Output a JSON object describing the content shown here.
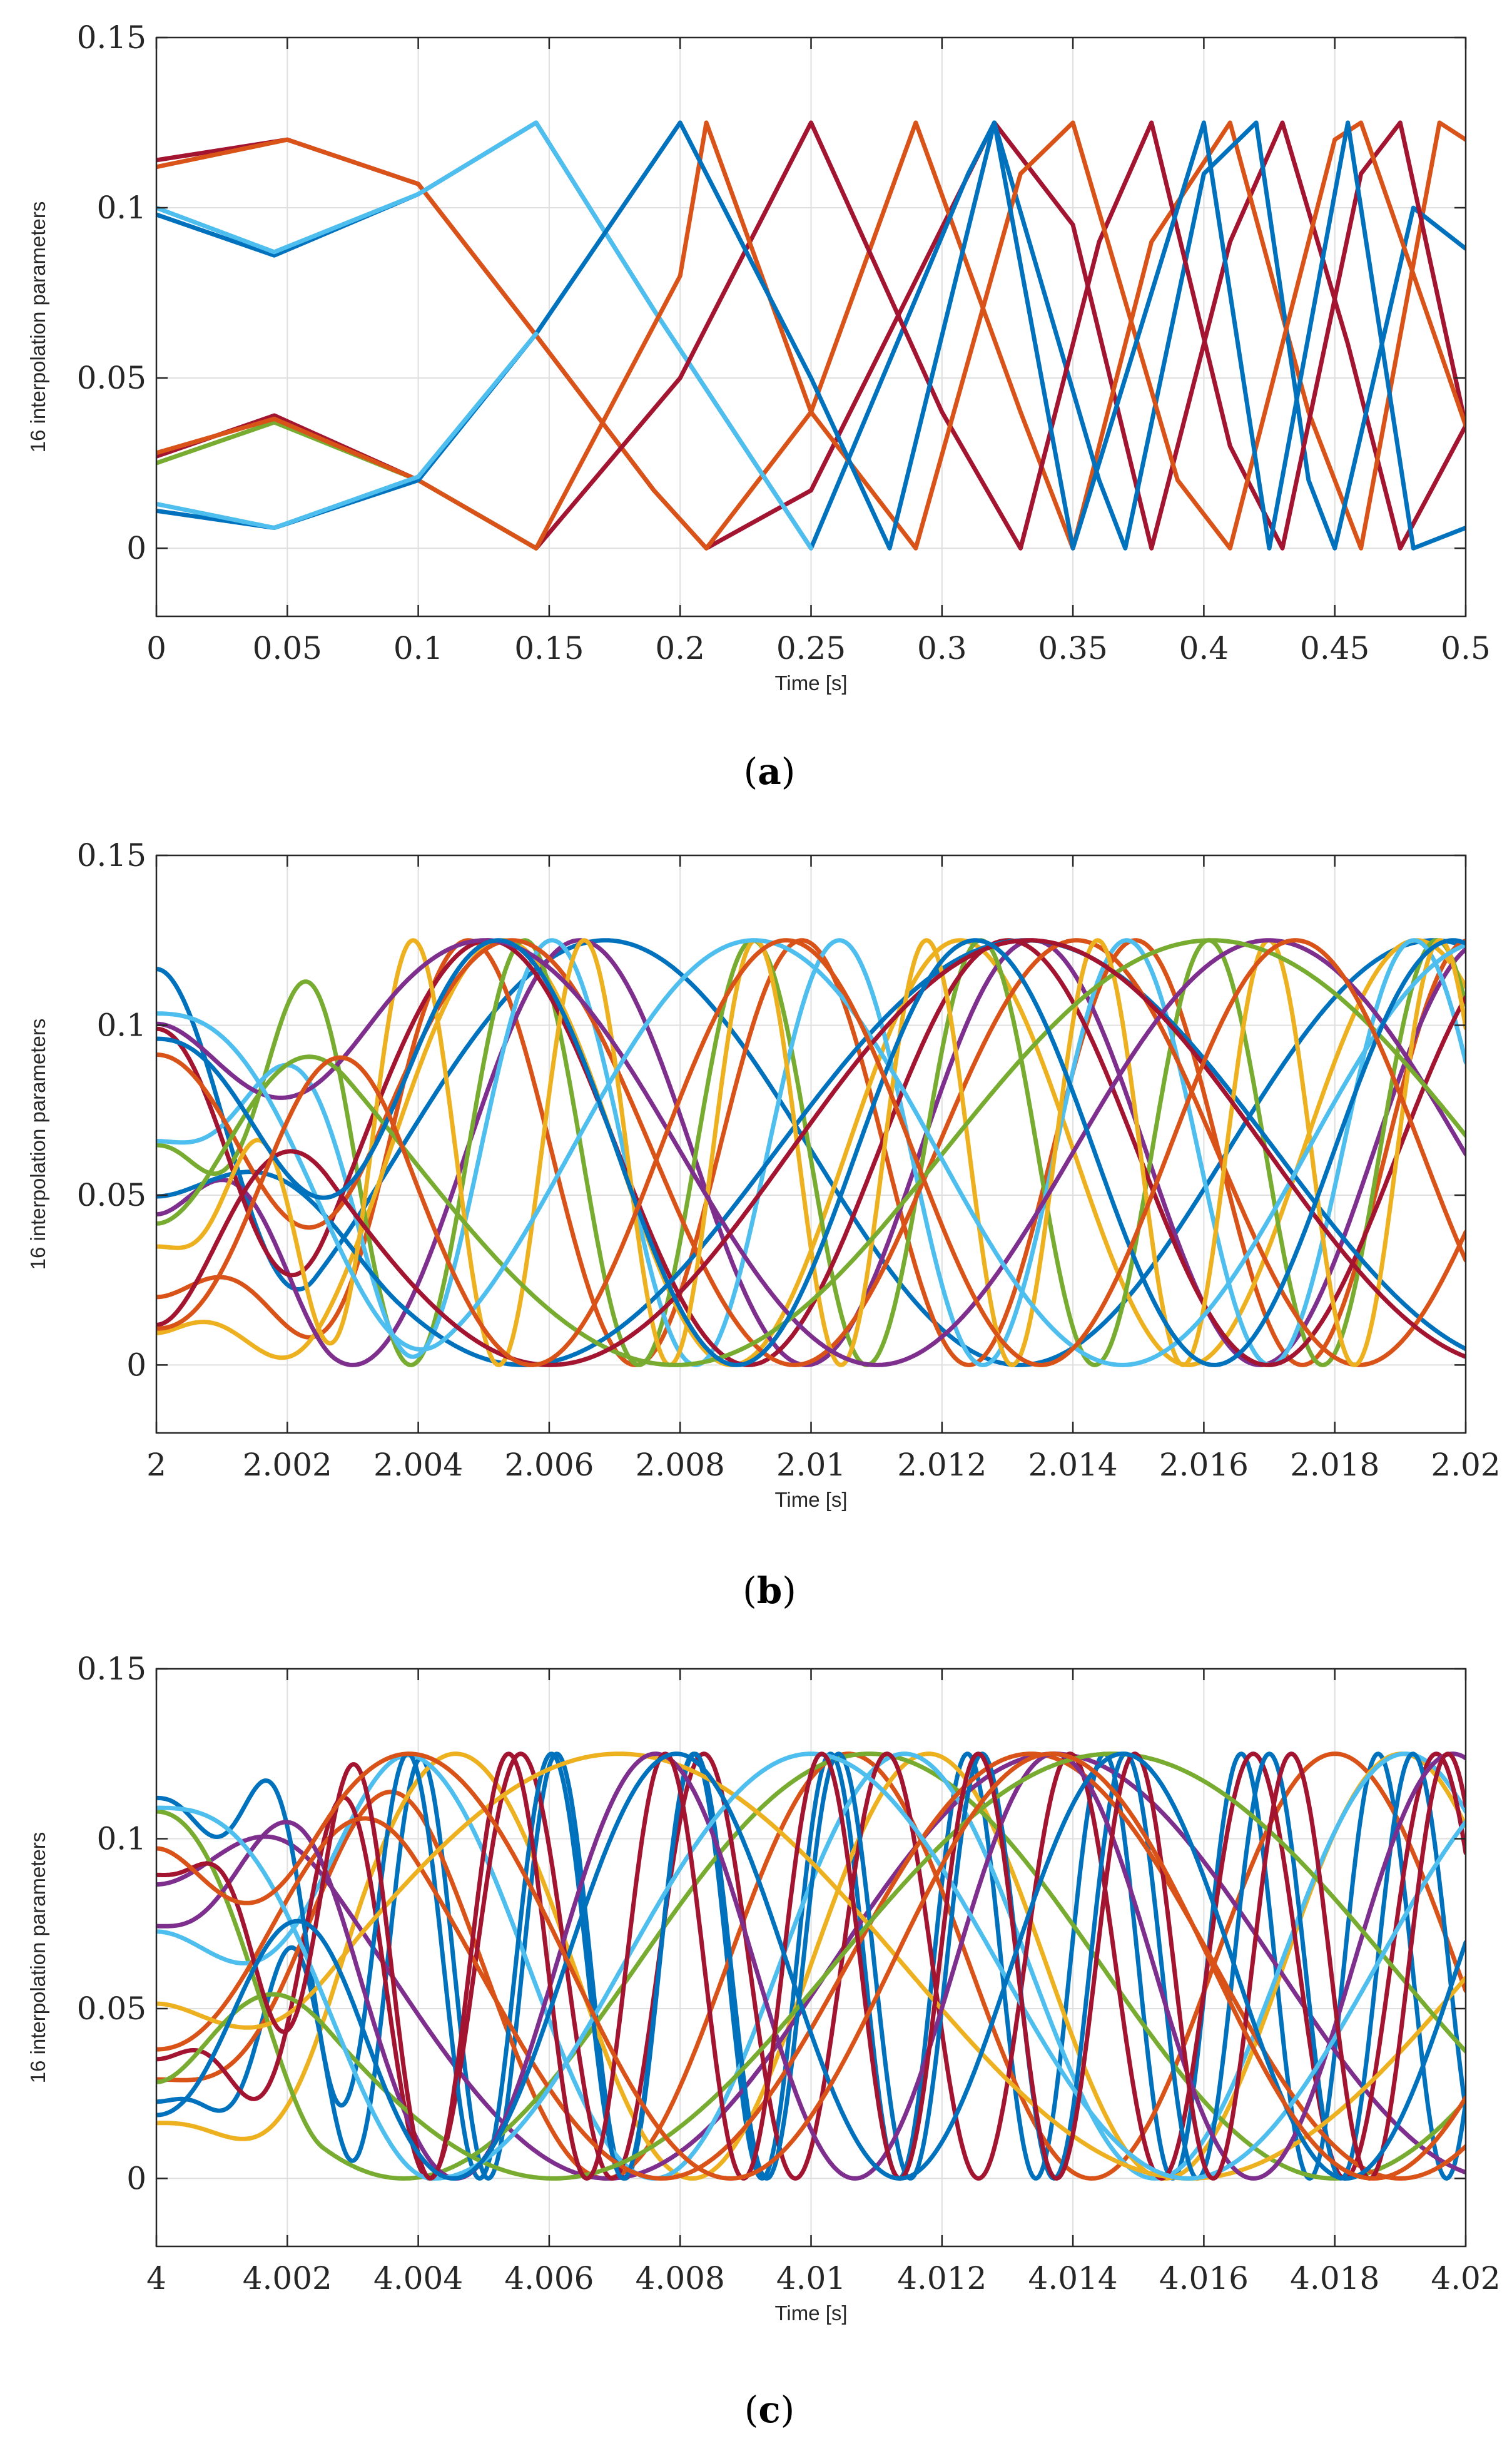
{
  "chart_data": [
    {
      "type": "line",
      "panel": "a",
      "caption": "a",
      "xlabel": "Time [s]",
      "ylabel": "16 interpolation parameters",
      "xlim": [
        0,
        0.5
      ],
      "ylim": [
        -0.02,
        0.15
      ],
      "xticks": [
        0,
        0.05,
        0.1,
        0.15,
        0.2,
        0.25,
        0.3,
        0.35,
        0.4,
        0.45,
        0.5
      ],
      "xtick_labels": [
        "0",
        "0.05",
        "0.1",
        "0.15",
        "0.2",
        "0.25",
        "0.3",
        "0.35",
        "0.4",
        "0.45",
        "0.5"
      ],
      "yticks": [
        0,
        0.05,
        0.1,
        0.15
      ],
      "ytick_labels": [
        "0",
        "0.05",
        "0.1",
        "0.15"
      ],
      "grid": true,
      "series_count": 16,
      "series_colors": [
        "#0072BD",
        "#D95319",
        "#EDB120",
        "#7E2F8E",
        "#77AC30",
        "#4DBEEE",
        "#A2142F"
      ],
      "series": [
        {
          "color": "#A2142F",
          "points": [
            [
              0,
              0.114
            ],
            [
              0.05,
              0.12
            ],
            [
              0.1,
              0.107
            ],
            [
              0.145,
              0.0625
            ],
            [
              0.19,
              0.017
            ],
            [
              0.21,
              0.0
            ],
            [
              0.25,
              0.017
            ],
            [
              0.32,
              0.125
            ],
            [
              0.35,
              0.095
            ],
            [
              0.38,
              0.0
            ],
            [
              0.41,
              0.09
            ],
            [
              0.43,
              0.125
            ],
            [
              0.455,
              0.06
            ],
            [
              0.475,
              0.0
            ],
            [
              0.5,
              0.036
            ]
          ]
        },
        {
          "color": "#D95319",
          "points": [
            [
              0,
              0.112
            ],
            [
              0.05,
              0.12
            ],
            [
              0.1,
              0.107
            ],
            [
              0.145,
              0.0625
            ],
            [
              0.19,
              0.017
            ],
            [
              0.21,
              0.0
            ],
            [
              0.25,
              0.04
            ],
            [
              0.29,
              0.125
            ],
            [
              0.33,
              0.04
            ],
            [
              0.35,
              0.0
            ],
            [
              0.38,
              0.09
            ],
            [
              0.41,
              0.125
            ],
            [
              0.44,
              0.04
            ],
            [
              0.46,
              0.0
            ],
            [
              0.49,
              0.125
            ],
            [
              0.5,
              0.12
            ]
          ]
        },
        {
          "color": "#0072BD",
          "points": [
            [
              0,
              0.098
            ],
            [
              0.045,
              0.086
            ],
            [
              0.1,
              0.104
            ],
            [
              0.145,
              0.125
            ],
            [
              0.19,
              0.07
            ],
            [
              0.25,
              0.0
            ],
            [
              0.31,
              0.11
            ],
            [
              0.32,
              0.125
            ],
            [
              0.36,
              0.02
            ],
            [
              0.37,
              0.0
            ],
            [
              0.4,
              0.11
            ],
            [
              0.42,
              0.125
            ],
            [
              0.44,
              0.02
            ],
            [
              0.45,
              0.0
            ],
            [
              0.48,
              0.1
            ],
            [
              0.5,
              0.088
            ]
          ]
        },
        {
          "color": "#4DBEEE",
          "points": [
            [
              0,
              0.1
            ],
            [
              0.045,
              0.087
            ],
            [
              0.1,
              0.104
            ],
            [
              0.145,
              0.125
            ],
            [
              0.19,
              0.07
            ],
            [
              0.25,
              0.0
            ]
          ]
        },
        {
          "color": "#A2142F",
          "points": [
            [
              0,
              0.027
            ],
            [
              0.045,
              0.039
            ],
            [
              0.1,
              0.02
            ],
            [
              0.145,
              0.0
            ],
            [
              0.2,
              0.05
            ],
            [
              0.25,
              0.125
            ],
            [
              0.3,
              0.04
            ],
            [
              0.33,
              0.0
            ],
            [
              0.36,
              0.09
            ],
            [
              0.38,
              0.125
            ],
            [
              0.41,
              0.03
            ],
            [
              0.43,
              0.0
            ],
            [
              0.46,
              0.11
            ],
            [
              0.475,
              0.125
            ],
            [
              0.5,
              0.036
            ]
          ]
        },
        {
          "color": "#77AC30",
          "points": [
            [
              0,
              0.025
            ],
            [
              0.045,
              0.037
            ],
            [
              0.1,
              0.02
            ],
            [
              0.145,
              0.0
            ]
          ]
        },
        {
          "color": "#D95319",
          "points": [
            [
              0,
              0.028
            ],
            [
              0.045,
              0.038
            ],
            [
              0.1,
              0.02
            ],
            [
              0.145,
              0.0
            ],
            [
              0.2,
              0.08
            ],
            [
              0.21,
              0.125
            ],
            [
              0.25,
              0.04
            ],
            [
              0.29,
              0.0
            ],
            [
              0.33,
              0.11
            ],
            [
              0.35,
              0.125
            ],
            [
              0.39,
              0.02
            ],
            [
              0.41,
              0.0
            ],
            [
              0.45,
              0.12
            ],
            [
              0.46,
              0.125
            ],
            [
              0.5,
              0.036
            ]
          ]
        },
        {
          "color": "#0072BD",
          "points": [
            [
              0,
              0.011
            ],
            [
              0.045,
              0.006
            ],
            [
              0.1,
              0.02
            ],
            [
              0.145,
              0.063
            ],
            [
              0.2,
              0.125
            ],
            [
              0.25,
              0.05
            ],
            [
              0.28,
              0.0
            ],
            [
              0.32,
              0.125
            ],
            [
              0.35,
              0.0
            ],
            [
              0.4,
              0.125
            ],
            [
              0.425,
              0.0
            ],
            [
              0.455,
              0.125
            ],
            [
              0.48,
              0.0
            ],
            [
              0.5,
              0.006
            ]
          ]
        },
        {
          "color": "#4DBEEE",
          "points": [
            [
              0,
              0.013
            ],
            [
              0.045,
              0.006
            ],
            [
              0.1,
              0.021
            ],
            [
              0.145,
              0.063
            ]
          ]
        }
      ]
    },
    {
      "type": "line",
      "panel": "b",
      "caption": "b",
      "xlabel": "Time [s]",
      "ylabel": "16 interpolation parameters",
      "xlim": [
        2,
        2.02
      ],
      "ylim": [
        -0.02,
        0.15
      ],
      "xticks": [
        2,
        2.002,
        2.004,
        2.006,
        2.008,
        2.01,
        2.012,
        2.014,
        2.016,
        2.018,
        2.02
      ],
      "xtick_labels": [
        "2",
        "2.002",
        "2.004",
        "2.006",
        "2.008",
        "2.01",
        "2.012",
        "2.014",
        "2.016",
        "2.018",
        "2.02"
      ],
      "yticks": [
        0,
        0.05,
        0.1,
        0.15
      ],
      "ytick_labels": [
        "0",
        "0.05",
        "0.1",
        "0.15"
      ],
      "grid": true,
      "series_count": 16,
      "series_colors": [
        "#0072BD",
        "#D95319",
        "#EDB120",
        "#7E2F8E",
        "#77AC30",
        "#4DBEEE",
        "#A2142F"
      ],
      "value_range": [
        0,
        0.125
      ]
    },
    {
      "type": "line",
      "panel": "c",
      "caption": "c",
      "xlabel": "Time [s]",
      "ylabel": "16 interpolation parameters",
      "xlim": [
        4,
        4.02
      ],
      "ylim": [
        -0.02,
        0.15
      ],
      "xticks": [
        4,
        4.002,
        4.004,
        4.006,
        4.008,
        4.01,
        4.012,
        4.014,
        4.016,
        4.018,
        4.02
      ],
      "xtick_labels": [
        "4",
        "4.002",
        "4.004",
        "4.006",
        "4.008",
        "4.01",
        "4.012",
        "4.014",
        "4.016",
        "4.018",
        "4.02"
      ],
      "yticks": [
        0,
        0.05,
        0.1,
        0.15
      ],
      "ytick_labels": [
        "0",
        "0.05",
        "0.1",
        "0.15"
      ],
      "grid": true,
      "series_count": 16,
      "series_colors": [
        "#0072BD",
        "#D95319",
        "#EDB120",
        "#7E2F8E",
        "#77AC30",
        "#4DBEEE",
        "#A2142F"
      ],
      "value_range": [
        0,
        0.125
      ]
    }
  ]
}
